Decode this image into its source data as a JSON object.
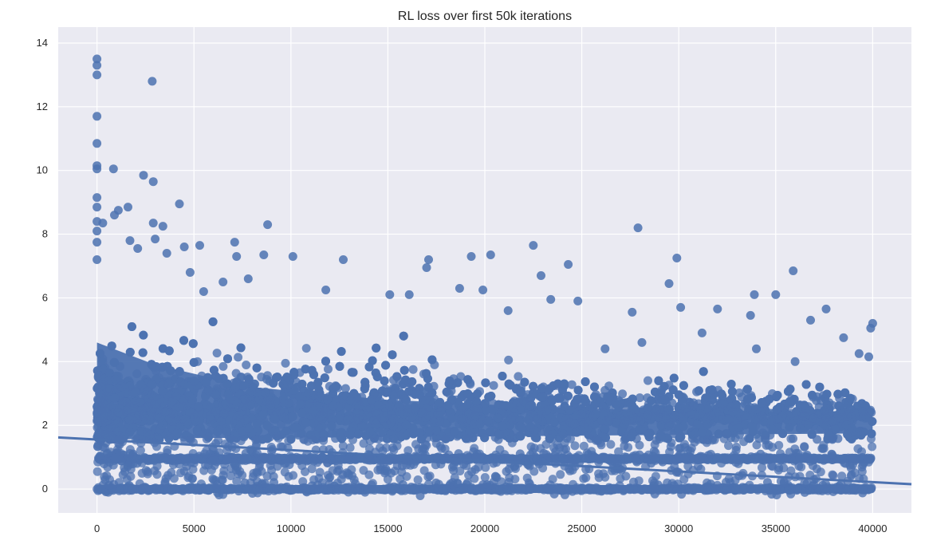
{
  "chart_data": {
    "type": "scatter",
    "title": "RL loss over first 50k iterations",
    "xlabel": "",
    "ylabel": "",
    "xlim": [
      -2000,
      42000
    ],
    "ylim": [
      -0.75,
      14.5
    ],
    "x_ticks": [
      0,
      5000,
      10000,
      15000,
      20000,
      25000,
      30000,
      35000,
      40000
    ],
    "y_ticks": [
      0,
      2,
      4,
      6,
      8,
      10,
      12,
      14
    ],
    "grid": true,
    "background_color": "#eaeaf2",
    "point_color": "#4c72b0",
    "regression_line": {
      "x": [
        -2000,
        42000
      ],
      "y": [
        1.62,
        0.15
      ]
    },
    "points": [
      [
        0,
        13.5
      ],
      [
        0,
        13.3
      ],
      [
        0,
        13.0
      ],
      [
        0,
        11.7
      ],
      [
        0,
        10.85
      ],
      [
        0,
        10.15
      ],
      [
        0,
        10.05
      ],
      [
        2850,
        12.8
      ],
      [
        850,
        10.05
      ],
      [
        2400,
        9.85
      ],
      [
        2900,
        9.65
      ],
      [
        4250,
        8.95
      ],
      [
        1600,
        8.85
      ],
      [
        0,
        9.15
      ],
      [
        0,
        8.85
      ],
      [
        0,
        8.4
      ],
      [
        0,
        8.1
      ],
      [
        0,
        7.75
      ],
      [
        0,
        7.2
      ],
      [
        300,
        8.35
      ],
      [
        900,
        8.6
      ],
      [
        1100,
        8.75
      ],
      [
        1700,
        7.8
      ],
      [
        2100,
        7.55
      ],
      [
        2900,
        8.35
      ],
      [
        3400,
        8.25
      ],
      [
        3000,
        7.85
      ],
      [
        3600,
        7.4
      ],
      [
        4500,
        7.6
      ],
      [
        5300,
        7.65
      ],
      [
        7100,
        7.75
      ],
      [
        7200,
        7.3
      ],
      [
        8800,
        8.3
      ],
      [
        8600,
        7.35
      ],
      [
        10100,
        7.3
      ],
      [
        12700,
        7.2
      ],
      [
        17100,
        7.2
      ],
      [
        19300,
        7.3
      ],
      [
        20300,
        7.35
      ],
      [
        22500,
        7.65
      ],
      [
        24300,
        7.05
      ],
      [
        27900,
        8.2
      ],
      [
        29900,
        7.25
      ],
      [
        35900,
        6.85
      ],
      [
        22900,
        6.7
      ],
      [
        17000,
        6.95
      ],
      [
        29500,
        6.45
      ],
      [
        33900,
        6.1
      ],
      [
        35000,
        6.1
      ],
      [
        19900,
        6.25
      ],
      [
        18700,
        6.3
      ],
      [
        16100,
        6.1
      ],
      [
        15100,
        6.1
      ],
      [
        11800,
        6.25
      ],
      [
        7800,
        6.6
      ],
      [
        6500,
        6.5
      ],
      [
        5500,
        6.2
      ],
      [
        4800,
        6.8
      ],
      [
        24800,
        5.9
      ],
      [
        23400,
        5.95
      ],
      [
        21200,
        5.6
      ],
      [
        27600,
        5.55
      ],
      [
        30100,
        5.7
      ],
      [
        32000,
        5.65
      ],
      [
        33700,
        5.45
      ],
      [
        37600,
        5.65
      ],
      [
        36800,
        5.3
      ],
      [
        39900,
        5.05
      ],
      [
        40000,
        5.2
      ],
      [
        38500,
        4.75
      ],
      [
        39300,
        4.25
      ],
      [
        31200,
        4.9
      ],
      [
        28100,
        4.6
      ],
      [
        26200,
        4.4
      ],
      [
        34000,
        4.4
      ],
      [
        36000,
        4.0
      ],
      [
        39800,
        4.15
      ]
    ],
    "dense_band": {
      "x_range": [
        0,
        40000
      ],
      "y_center": 2.1
    },
    "bands": [
      {
        "y": 0.95,
        "x_range": [
          0,
          40000
        ]
      },
      {
        "y": 0.0,
        "x_range": [
          0,
          40000
        ]
      }
    ]
  }
}
